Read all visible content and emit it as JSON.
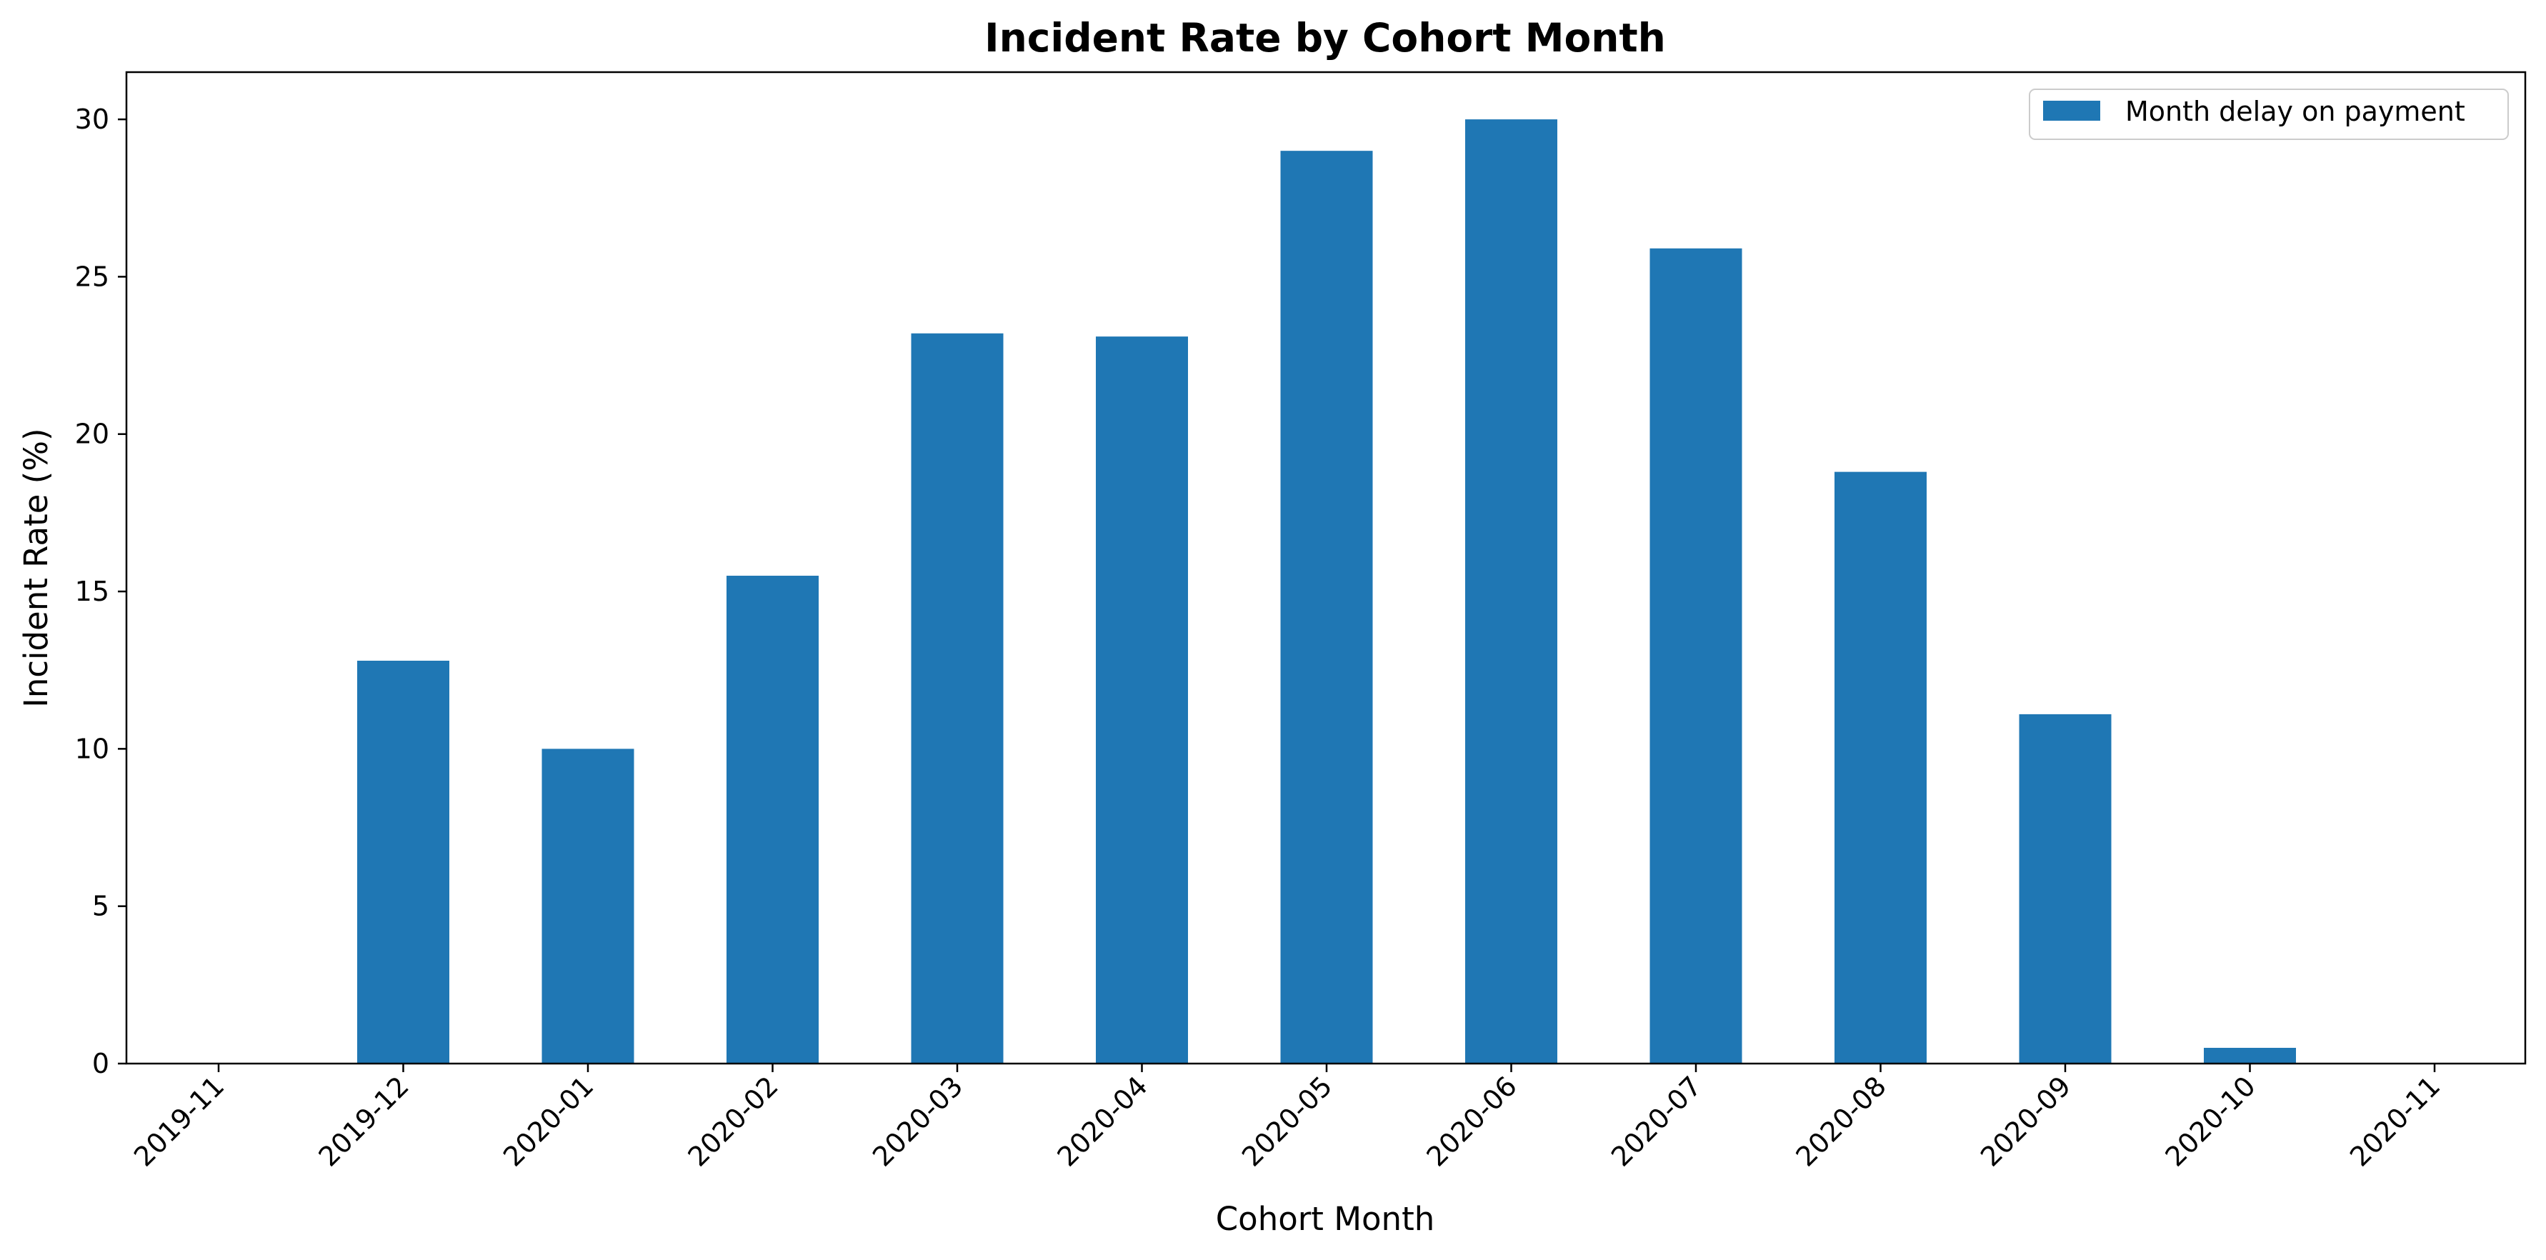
{
  "chart_data": {
    "type": "bar",
    "title": "Incident Rate by Cohort Month",
    "xlabel": "Cohort Month",
    "ylabel": "Incident Rate (%)",
    "categories": [
      "2019-11",
      "2019-12",
      "2020-01",
      "2020-02",
      "2020-03",
      "2020-04",
      "2020-05",
      "2020-06",
      "2020-07",
      "2020-08",
      "2020-09",
      "2020-10",
      "2020-11"
    ],
    "series": [
      {
        "name": "Month delay on payment",
        "color": "#1f77b4",
        "values": [
          0,
          12.8,
          10.0,
          15.5,
          23.2,
          23.1,
          29.0,
          30.0,
          25.9,
          18.8,
          11.1,
          0.5,
          0
        ]
      }
    ],
    "ylim": [
      0,
      31.5
    ],
    "yticks": [
      0,
      5,
      10,
      15,
      20,
      25,
      30
    ],
    "grid": false,
    "legend_position": "top-right"
  }
}
